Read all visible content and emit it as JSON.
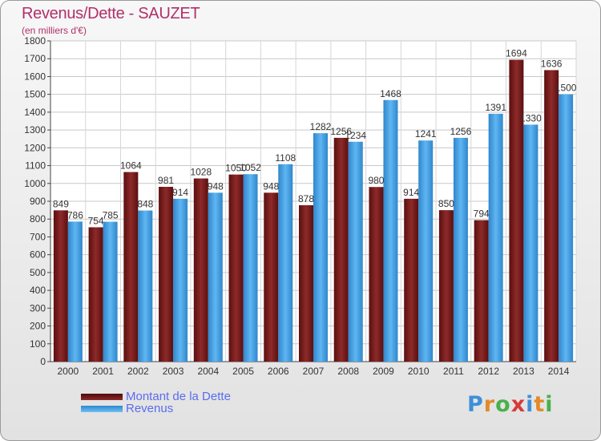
{
  "title": "Revenus/Dette - SAUZET",
  "subtitle": "(en milliers d'€)",
  "logo": {
    "letters": [
      "P",
      "r",
      "o",
      "x",
      "i",
      "t",
      "i"
    ],
    "colors": [
      "#3f8fd8",
      "#e28a2a",
      "#4bb04b",
      "#d83a3a",
      "#3f8fd8",
      "#e28a2a",
      "#4bb04b"
    ]
  },
  "chart_data": {
    "type": "bar",
    "categories": [
      "2000",
      "2001",
      "2002",
      "2003",
      "2004",
      "2005",
      "2006",
      "2007",
      "2008",
      "2009",
      "2010",
      "2011",
      "2012",
      "2013",
      "2014"
    ],
    "series": [
      {
        "name": "Montant de la Dette",
        "color": "#7a1c1c",
        "values": [
          849,
          754,
          1064,
          981,
          1028,
          1050,
          948,
          878,
          1256,
          980,
          914,
          850,
          794,
          1694,
          1636
        ]
      },
      {
        "name": "Revenus",
        "color": "#4aa3e6",
        "values": [
          786,
          785,
          848,
          914,
          948,
          1052,
          1108,
          1282,
          1234,
          1468,
          1241,
          1256,
          1391,
          1330,
          1500
        ]
      }
    ],
    "ylim": [
      0,
      1800
    ],
    "yticks": [
      0,
      100,
      200,
      300,
      400,
      500,
      600,
      700,
      800,
      900,
      1000,
      1100,
      1200,
      1300,
      1400,
      1500,
      1600,
      1700,
      1800
    ],
    "grid": true,
    "legend_position": "bottom-left"
  }
}
